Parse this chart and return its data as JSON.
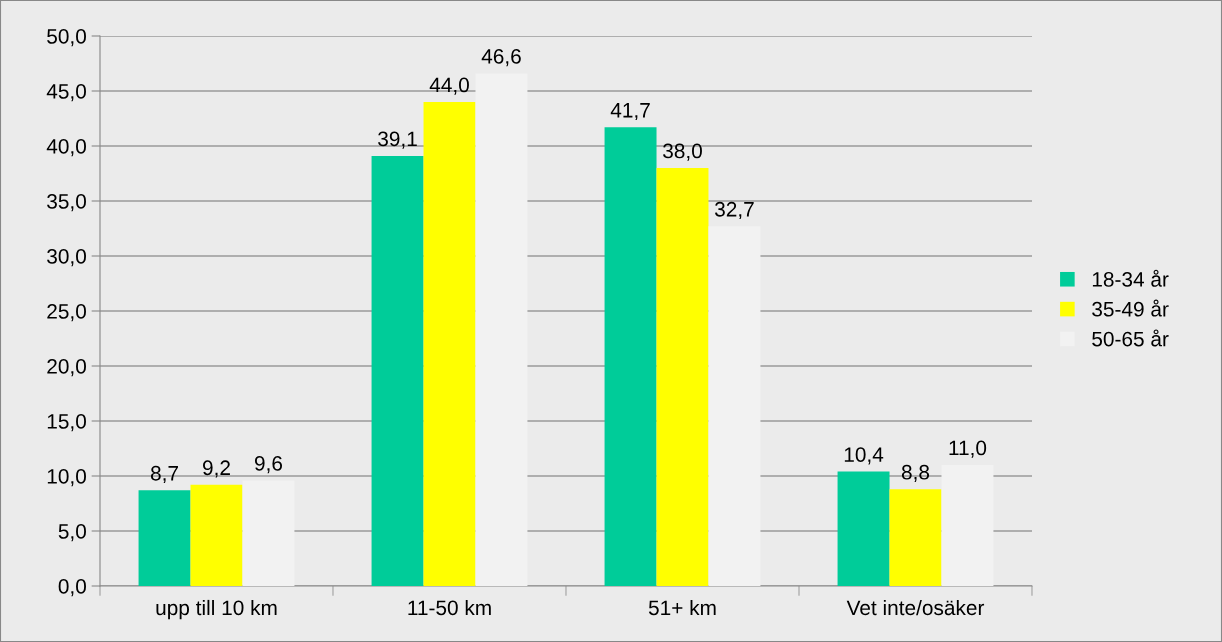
{
  "chart_data": {
    "type": "bar",
    "categories": [
      "upp till 10 km",
      "11-50 km",
      "51+ km",
      "Vet inte/osäker"
    ],
    "series": [
      {
        "name": "18-34 år",
        "color": "#00cc99",
        "values": [
          8.7,
          39.1,
          41.7,
          10.4
        ],
        "value_labels": [
          "8,7",
          "39,1",
          "41,7",
          "10,4"
        ]
      },
      {
        "name": "35-49 år",
        "color": "#ffff00",
        "values": [
          9.2,
          44.0,
          38.0,
          8.8
        ],
        "value_labels": [
          "9,2",
          "44,0",
          "38,0",
          "8,8"
        ]
      },
      {
        "name": "50-65 år",
        "color": "#f2f2f2",
        "values": [
          9.6,
          46.6,
          32.7,
          11.0
        ],
        "value_labels": [
          "9,6",
          "46,6",
          "32,7",
          "11,0"
        ]
      }
    ],
    "ylim": [
      0,
      50
    ],
    "yticks": [
      {
        "value": 0,
        "label": "0,0"
      },
      {
        "value": 5,
        "label": "5,0"
      },
      {
        "value": 10,
        "label": "10,0"
      },
      {
        "value": 15,
        "label": "15,0"
      },
      {
        "value": 20,
        "label": "20,0"
      },
      {
        "value": 25,
        "label": "25,0"
      },
      {
        "value": 30,
        "label": "30,0"
      },
      {
        "value": 35,
        "label": "35,0"
      },
      {
        "value": 40,
        "label": "40,0"
      },
      {
        "value": 45,
        "label": "45,0"
      },
      {
        "value": 50,
        "label": "50,0"
      }
    ],
    "grid": "y",
    "legend": "right"
  }
}
